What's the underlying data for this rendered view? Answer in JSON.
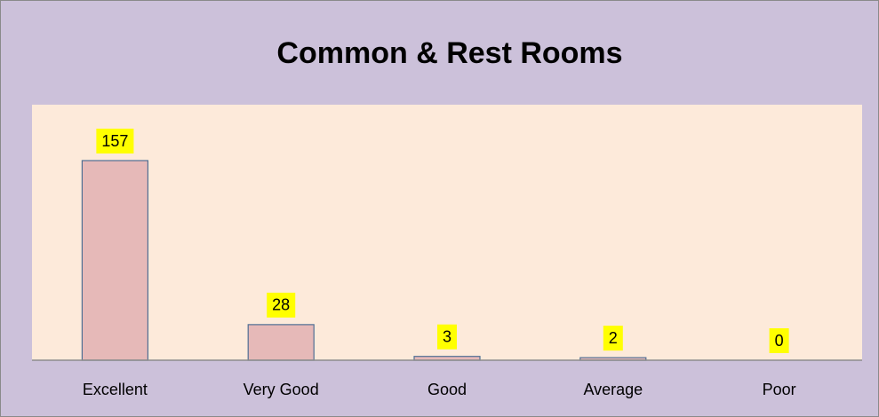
{
  "chart_data": {
    "type": "bar",
    "title": "Common & Rest Rooms",
    "categories": [
      "Excellent",
      "Very Good",
      "Good",
      "Average",
      "Poor"
    ],
    "values": [
      157,
      28,
      3,
      2,
      0
    ],
    "color": "#e6b9b8"
  }
}
